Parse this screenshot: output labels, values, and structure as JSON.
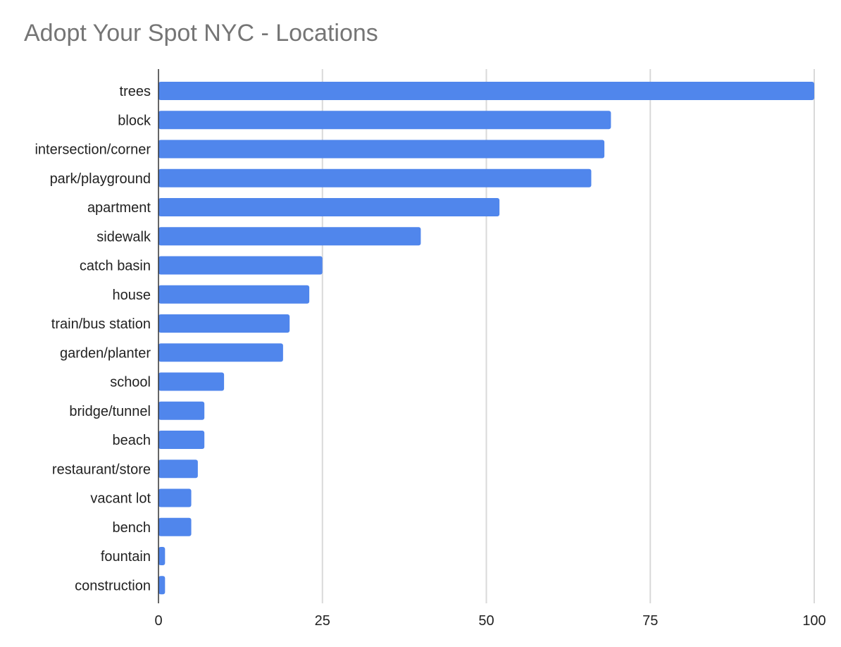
{
  "chart_data": {
    "type": "bar",
    "orientation": "horizontal",
    "title": "Adopt Your Spot NYC - Locations",
    "xlabel": "",
    "ylabel": "",
    "categories": [
      "trees",
      "block",
      "intersection/corner",
      "park/playground",
      "apartment",
      "sidewalk",
      "catch basin",
      "house",
      "train/bus station",
      "garden/planter",
      "school",
      "bridge/tunnel",
      "beach",
      "restaurant/store",
      "vacant lot",
      "bench",
      "fountain",
      "construction"
    ],
    "values": [
      100,
      69,
      68,
      66,
      52,
      40,
      25,
      23,
      20,
      19,
      10,
      7,
      7,
      6,
      5,
      5,
      1,
      1
    ],
    "xlim": [
      0,
      100
    ],
    "xticks": [
      0,
      25,
      50,
      75,
      100
    ],
    "xtick_labels": [
      "0",
      "25",
      "50",
      "75",
      "100"
    ],
    "grid": true,
    "legend": "none",
    "bar_color": "#5086ec",
    "grid_color": "#d9d9d9",
    "axis_color": "#333333"
  }
}
